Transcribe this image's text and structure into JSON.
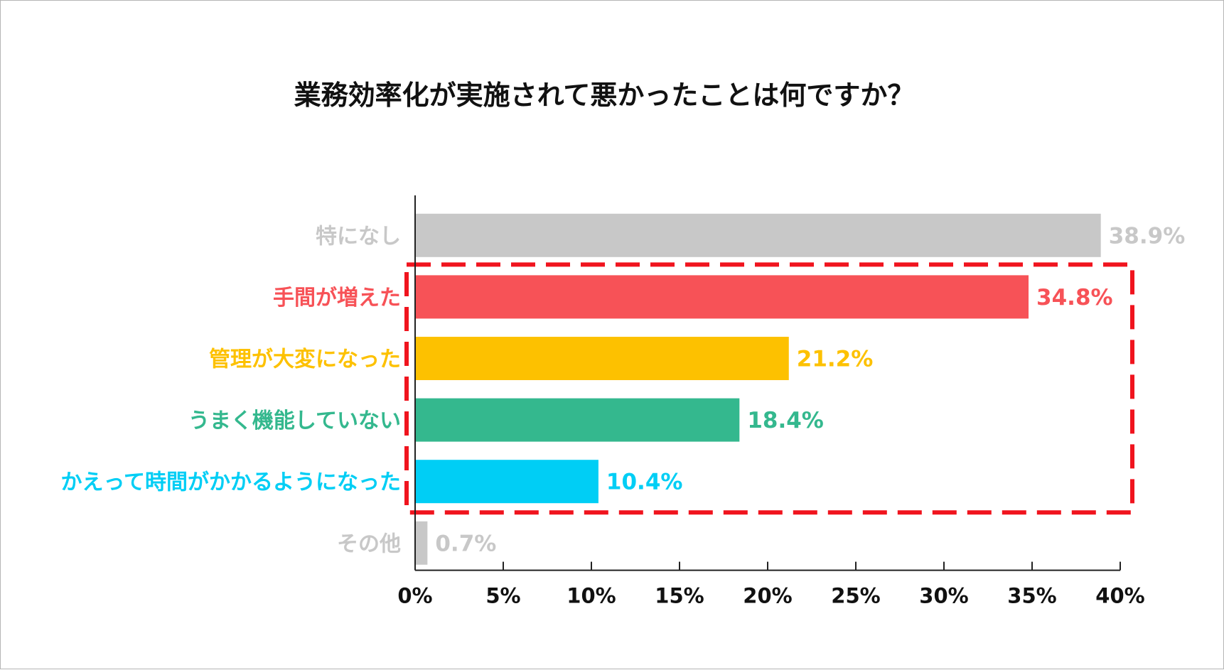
{
  "chart_data": {
    "type": "bar",
    "orientation": "horizontal",
    "title": "業務効率化が実施されて悪かったことは何ですか？",
    "xlabel": "",
    "ylabel": "",
    "xlim": [
      0,
      40
    ],
    "grid": false,
    "legend": "none",
    "categories": [
      "特になし",
      "手間が増えた",
      "管理が大変になった",
      "うまく機能していない",
      "かえって時間がかかるようになった",
      "その他"
    ],
    "values": [
      38.9,
      34.8,
      21.2,
      18.4,
      10.4,
      0.7
    ],
    "value_labels": [
      "38.9%",
      "34.8%",
      "21.2%",
      "18.4%",
      "10.4%",
      "0.7%"
    ],
    "colors": [
      "#c8c8c8",
      "#f75257",
      "#fdc100",
      "#34b88e",
      "#00cef5",
      "#c8c8c8"
    ],
    "xticks": [
      0,
      5,
      10,
      15,
      20,
      25,
      30,
      35,
      40
    ],
    "xtick_labels": [
      "0%",
      "5%",
      "10%",
      "15%",
      "20%",
      "25%",
      "30%",
      "35%",
      "40%"
    ],
    "highlight": {
      "style": "dashed-box",
      "color": "#f0141e",
      "categories": [
        "手間が増えた",
        "管理が大変になった",
        "うまく機能していない",
        "かえって時間がかかるようになった"
      ]
    }
  }
}
